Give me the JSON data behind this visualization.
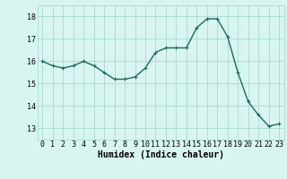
{
  "x": [
    0,
    1,
    2,
    3,
    4,
    5,
    6,
    7,
    8,
    9,
    10,
    11,
    12,
    13,
    14,
    15,
    16,
    17,
    18,
    19,
    20,
    21,
    22,
    23
  ],
  "y": [
    16.0,
    15.8,
    15.7,
    15.8,
    16.0,
    15.8,
    15.5,
    15.2,
    15.2,
    15.3,
    15.7,
    16.4,
    16.6,
    16.6,
    16.6,
    17.5,
    17.9,
    17.9,
    17.1,
    15.5,
    14.2,
    13.6,
    13.1,
    13.2
  ],
  "xlabel": "Humidex (Indice chaleur)",
  "xlim": [
    -0.5,
    23.5
  ],
  "ylim": [
    12.5,
    18.5
  ],
  "yticks": [
    13,
    14,
    15,
    16,
    17,
    18
  ],
  "xticks": [
    0,
    1,
    2,
    3,
    4,
    5,
    6,
    7,
    8,
    9,
    10,
    11,
    12,
    13,
    14,
    15,
    16,
    17,
    18,
    19,
    20,
    21,
    22,
    23
  ],
  "line_color": "#1a6b5a",
  "marker": "+",
  "bg_color": "#d8f5f0",
  "grid_color": "#a0d4cc",
  "label_fontsize": 7,
  "tick_fontsize": 6
}
